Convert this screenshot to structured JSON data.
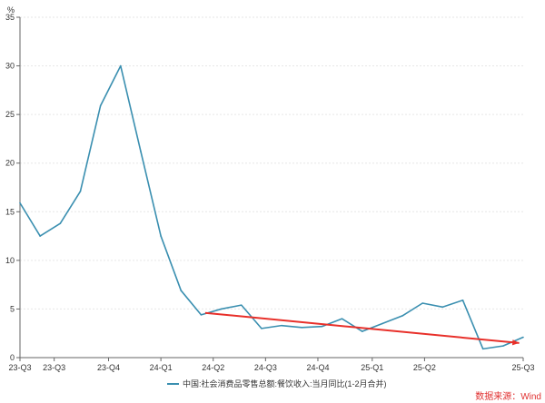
{
  "chart_data": {
    "type": "line",
    "title": "",
    "ylabel": "%",
    "xlabel": "",
    "ylim": [
      0,
      35
    ],
    "yticks": [
      0,
      5,
      10,
      15,
      20,
      25,
      30,
      35
    ],
    "grid": true,
    "x_tick_labels": [
      {
        "label": "23-Q3",
        "index": 0
      },
      {
        "label": "23-Q3",
        "index": 1.7
      },
      {
        "label": "23-Q4",
        "index": 4.4
      },
      {
        "label": "24-Q1",
        "index": 7
      },
      {
        "label": "24-Q2",
        "index": 9.6
      },
      {
        "label": "24-Q3",
        "index": 12.2
      },
      {
        "label": "24-Q4",
        "index": 14.8
      },
      {
        "label": "25-Q1",
        "index": 17.5
      },
      {
        "label": "25-Q2",
        "index": 20.1
      },
      {
        "label": "25-Q3",
        "index": 25
      }
    ],
    "series": [
      {
        "name": "中国:社会消费品零售总额:餐饮收入:当月同比(1-2月合并)",
        "color": "#3a8fb0",
        "values": [
          15.9,
          12.5,
          13.8,
          17.1,
          25.9,
          30.0,
          21.2,
          12.5,
          6.9,
          4.4,
          5.0,
          5.4,
          3.0,
          3.3,
          3.1,
          3.2,
          4.0,
          2.7,
          3.5,
          4.3,
          5.6,
          5.2,
          5.9,
          0.9,
          1.2,
          2.1
        ]
      }
    ],
    "annotations": [
      {
        "type": "trend-arrow",
        "color": "#e8302a",
        "from": {
          "index": 9.2,
          "value": 4.6
        },
        "to": {
          "index": 24.8,
          "value": 1.5
        }
      }
    ],
    "legend_position": "bottom-center",
    "source": "数据来源：Wind"
  }
}
